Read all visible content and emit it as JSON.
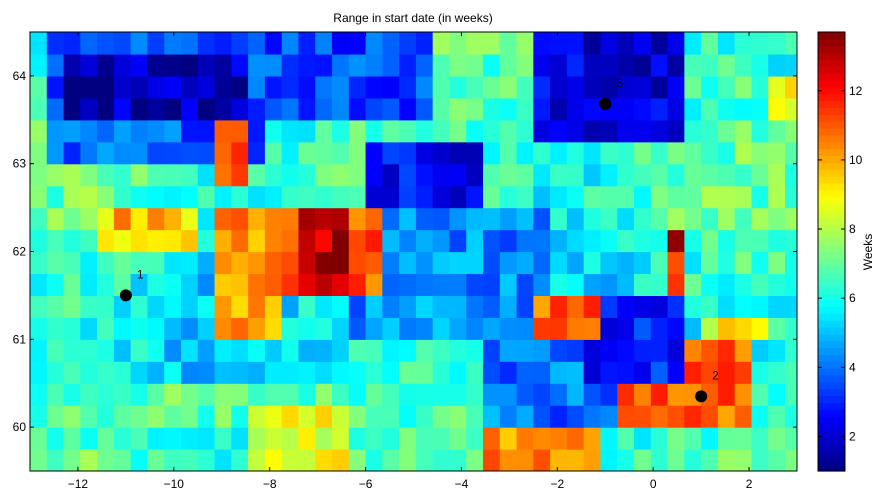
{
  "chart_data": {
    "type": "heatmap",
    "title": "Range in start date (in weeks)",
    "xlabel": "",
    "ylabel": "",
    "colorbar_label": "Weeks",
    "xlim": [
      -13,
      3
    ],
    "ylim": [
      59.5,
      64.5
    ],
    "clim": [
      1.0,
      13.7
    ],
    "x_ticks": [
      -12,
      -10,
      -8,
      -6,
      -4,
      -2,
      0,
      2
    ],
    "y_ticks": [
      60,
      61,
      62,
      63,
      64
    ],
    "colorbar_ticks": [
      2,
      4,
      6,
      8,
      10,
      12
    ],
    "colormap": "jet",
    "grid": false,
    "cell_size": [
      0.35,
      0.25
    ],
    "markers": [
      {
        "label": "1",
        "lon": -11.0,
        "lat": 61.5
      },
      {
        "label": "2",
        "lon": 1.0,
        "lat": 60.35
      },
      {
        "label": "3",
        "lon": -1.0,
        "lat": 63.68
      }
    ],
    "regions": [
      {
        "name": "dark-blue-northwest",
        "lon": [
          -12.2,
          -8.5
        ],
        "lat": [
          63.5,
          64.2
        ],
        "value": 1.8
      },
      {
        "name": "blue-northwest",
        "lon": [
          -12.5,
          -8.0
        ],
        "lat": [
          63.0,
          64.4
        ],
        "value": 3.8
      },
      {
        "name": "blue-north-central",
        "lon": [
          -8.0,
          -3.0
        ],
        "lat": [
          63.5,
          64.4
        ],
        "value": 3.5
      },
      {
        "name": "dark-blue-north-central",
        "lon": [
          -6.0,
          -3.5
        ],
        "lat": [
          62.6,
          63.2
        ],
        "value": 2.5
      },
      {
        "name": "blue-central",
        "lon": [
          -6.5,
          -2.0
        ],
        "lat": [
          61.0,
          62.5
        ],
        "value": 4.3
      },
      {
        "name": "dark-blue-northeast",
        "lon": [
          -2.5,
          0.5
        ],
        "lat": [
          63.2,
          64.4
        ],
        "value": 2.2
      },
      {
        "name": "blue-east",
        "lon": [
          -1.5,
          0.8
        ],
        "lat": [
          60.6,
          61.5
        ],
        "value": 3.0
      },
      {
        "name": "blue-southeast",
        "lon": [
          -3.5,
          0.0
        ],
        "lat": [
          59.9,
          60.9
        ],
        "value": 4.0
      },
      {
        "name": "dark-red-centre",
        "lon": [
          -7.5,
          -6.2
        ],
        "lat": [
          61.6,
          62.5
        ],
        "value": 13.0
      },
      {
        "name": "red-centre",
        "lon": [
          -8.0,
          -5.6
        ],
        "lat": [
          61.5,
          62.4
        ],
        "value": 11.2
      },
      {
        "name": "orange-west-central",
        "lon": [
          -9.0,
          -7.8
        ],
        "lat": [
          61.0,
          62.5
        ],
        "value": 10.3
      },
      {
        "name": "red-northwest",
        "lon": [
          -9.0,
          -8.5
        ],
        "lat": [
          62.8,
          63.6
        ],
        "value": 11.0
      },
      {
        "name": "yellow-west",
        "lon": [
          -11.5,
          -9.6
        ],
        "lat": [
          61.9,
          62.4
        ],
        "value": 8.8
      },
      {
        "name": "orange-west",
        "lon": [
          -11.2,
          -10.0
        ],
        "lat": [
          62.3,
          62.6
        ],
        "value": 10.0
      },
      {
        "name": "red-east",
        "lon": [
          -2.5,
          -1.0
        ],
        "lat": [
          61.0,
          61.6
        ],
        "value": 11.0
      },
      {
        "name": "dark-red-east",
        "lon": [
          0.2,
          0.8
        ],
        "lat": [
          61.9,
          62.3
        ],
        "value": 12.8
      },
      {
        "name": "red-east-2",
        "lon": [
          0.3,
          0.8
        ],
        "lat": [
          61.5,
          61.9
        ],
        "value": 11.8
      },
      {
        "name": "orange-southeast",
        "lon": [
          -0.8,
          2.0
        ],
        "lat": [
          60.0,
          60.9
        ],
        "value": 10.8
      },
      {
        "name": "orange-south",
        "lon": [
          -3.5,
          -1.0
        ],
        "lat": [
          59.55,
          60.1
        ],
        "value": 10.5
      },
      {
        "name": "yellow-south",
        "lon": [
          -8.5,
          -6.5
        ],
        "lat": [
          59.6,
          60.3
        ],
        "value": 8.8
      },
      {
        "name": "yellow-east",
        "lon": [
          1.0,
          2.5
        ],
        "lat": [
          60.9,
          61.3
        ],
        "value": 8.8
      },
      {
        "name": "yellow-far-east",
        "lon": [
          2.5,
          3.0
        ],
        "lat": [
          63.5,
          64.0
        ],
        "value": 9.0
      },
      {
        "name": "green-east",
        "lon": [
          0.0,
          3.0
        ],
        "lat": [
          62.0,
          63.2
        ],
        "value": 7.0
      },
      {
        "name": "green-south",
        "lon": [
          -12.0,
          -4.0
        ],
        "lat": [
          59.9,
          60.6
        ],
        "value": 6.8
      },
      {
        "name": "green-north",
        "lon": [
          -4.5,
          -2.5
        ],
        "lat": [
          63.2,
          64.4
        ],
        "value": 6.8
      }
    ]
  }
}
